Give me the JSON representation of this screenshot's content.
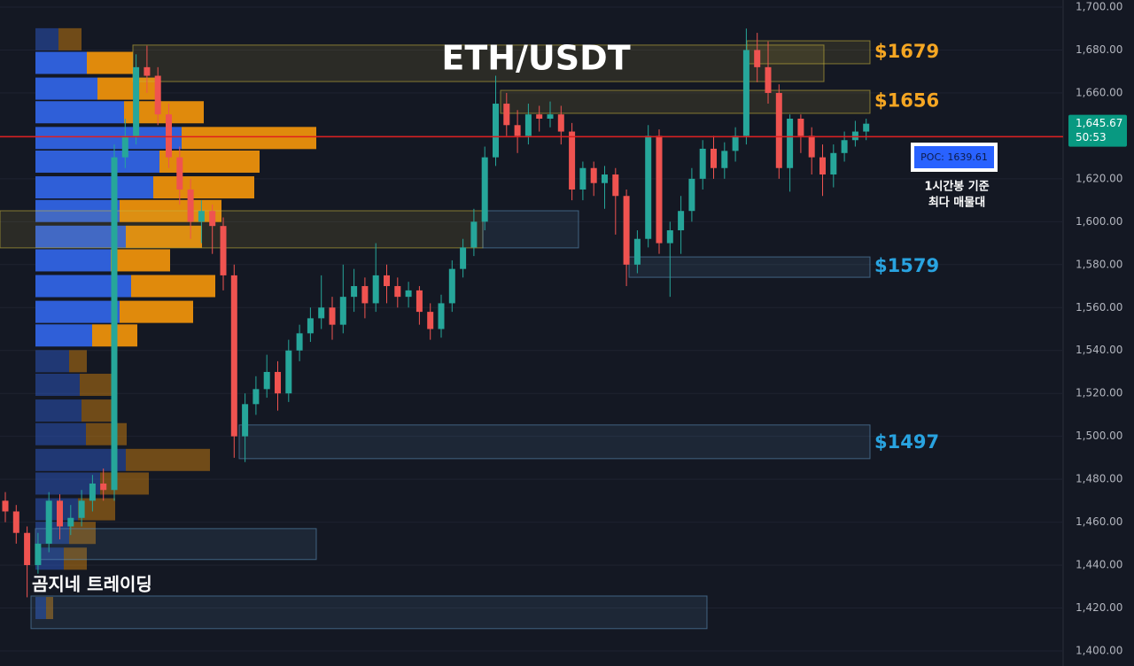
{
  "chart_data": {
    "type": "candlestick",
    "title": "ETH/USDT",
    "up_color": "#26a69a",
    "down_color": "#ef5350",
    "open": [
      1470,
      1465,
      1455,
      1440,
      1450,
      1470,
      1458,
      1462,
      1470,
      1478,
      1475,
      1630,
      1640,
      1672,
      1668,
      1650,
      1630,
      1615,
      1600,
      1605,
      1598,
      1575,
      1500,
      1515,
      1522,
      1530,
      1520,
      1540,
      1548,
      1555,
      1560,
      1552,
      1565,
      1570,
      1562,
      1575,
      1570,
      1565,
      1568,
      1558,
      1550,
      1562,
      1578,
      1588,
      1600,
      1630,
      1655,
      1645,
      1640,
      1650,
      1648,
      1650,
      1642,
      1615,
      1625,
      1618,
      1622,
      1612,
      1580,
      1592,
      1640,
      1590,
      1596,
      1605,
      1620,
      1634,
      1625,
      1633,
      1640,
      1680,
      1672,
      1660,
      1625,
      1648,
      1640,
      1630,
      1622,
      1632,
      1638,
      1642
    ],
    "high": [
      1474,
      1468,
      1458,
      1455,
      1474,
      1473,
      1468,
      1475,
      1482,
      1485,
      1636,
      1648,
      1678,
      1682,
      1672,
      1655,
      1635,
      1620,
      1610,
      1608,
      1602,
      1580,
      1520,
      1528,
      1538,
      1535,
      1545,
      1552,
      1560,
      1575,
      1565,
      1580,
      1578,
      1574,
      1590,
      1580,
      1574,
      1572,
      1570,
      1562,
      1566,
      1582,
      1592,
      1606,
      1635,
      1668,
      1660,
      1652,
      1655,
      1654,
      1656,
      1654,
      1646,
      1628,
      1628,
      1626,
      1625,
      1615,
      1596,
      1645,
      1643,
      1600,
      1612,
      1625,
      1638,
      1640,
      1637,
      1644,
      1690,
      1688,
      1684,
      1664,
      1650,
      1650,
      1644,
      1636,
      1636,
      1642,
      1647,
      1648
    ],
    "low": [
      1460,
      1450,
      1425,
      1436,
      1446,
      1452,
      1454,
      1458,
      1465,
      1470,
      1470,
      1625,
      1636,
      1660,
      1645,
      1625,
      1608,
      1592,
      1590,
      1585,
      1568,
      1490,
      1488,
      1510,
      1518,
      1512,
      1516,
      1535,
      1544,
      1550,
      1545,
      1548,
      1558,
      1555,
      1558,
      1562,
      1560,
      1560,
      1552,
      1545,
      1546,
      1558,
      1574,
      1584,
      1596,
      1626,
      1640,
      1632,
      1636,
      1642,
      1644,
      1636,
      1610,
      1610,
      1612,
      1606,
      1594,
      1570,
      1576,
      1588,
      1585,
      1565,
      1585,
      1600,
      1615,
      1620,
      1620,
      1628,
      1636,
      1665,
      1655,
      1620,
      1614,
      1632,
      1622,
      1612,
      1616,
      1628,
      1635,
      1638
    ],
    "close": [
      1465,
      1455,
      1440,
      1450,
      1470,
      1458,
      1462,
      1470,
      1478,
      1475,
      1630,
      1640,
      1672,
      1668,
      1650,
      1630,
      1615,
      1600,
      1605,
      1598,
      1575,
      1500,
      1515,
      1522,
      1530,
      1520,
      1540,
      1548,
      1555,
      1560,
      1552,
      1565,
      1570,
      1562,
      1575,
      1570,
      1565,
      1568,
      1558,
      1550,
      1562,
      1578,
      1588,
      1600,
      1630,
      1655,
      1645,
      1640,
      1650,
      1648,
      1650,
      1642,
      1615,
      1625,
      1618,
      1622,
      1612,
      1580,
      1592,
      1640,
      1590,
      1596,
      1605,
      1620,
      1634,
      1625,
      1633,
      1640,
      1680,
      1672,
      1660,
      1625,
      1648,
      1640,
      1630,
      1622,
      1632,
      1638,
      1642,
      1645.67
    ],
    "ylim": [
      1400,
      1700
    ],
    "yticks": [
      {
        "value": 1400,
        "label": "1,400.00"
      },
      {
        "value": 1420,
        "label": "1,420.00"
      },
      {
        "value": 1440,
        "label": "1,440.00"
      },
      {
        "value": 1460,
        "label": "1,460.00"
      },
      {
        "value": 1480,
        "label": "1,480.00"
      },
      {
        "value": 1500,
        "label": "1,500.00"
      },
      {
        "value": 1520,
        "label": "1,520.00"
      },
      {
        "value": 1540,
        "label": "1,540.00"
      },
      {
        "value": 1560,
        "label": "1,560.00"
      },
      {
        "value": 1580,
        "label": "1,580.00"
      },
      {
        "value": 1600,
        "label": "1,600.00"
      },
      {
        "value": 1620,
        "label": "1,620.00"
      },
      {
        "value": 1640,
        "label": "1,640.00"
      },
      {
        "value": 1660,
        "label": "1,660.00"
      },
      {
        "value": 1680,
        "label": "1,680.00"
      },
      {
        "value": 1700,
        "label": "1,700.00"
      }
    ],
    "grid": true,
    "poc": {
      "value": 1639.61,
      "label": "POC: 1639.61",
      "color": "#e01e1e"
    },
    "current_price": {
      "value": 1645.67,
      "label": "1,645.67",
      "countdown": "50:53",
      "color": "#089981"
    },
    "levels": [
      {
        "value": 1679,
        "label": "$1679",
        "color": "#f5a623"
      },
      {
        "value": 1656,
        "label": "$1656",
        "color": "#f5a623"
      },
      {
        "value": 1579,
        "label": "$1579",
        "color": "#29a3e0"
      },
      {
        "value": 1497,
        "label": "$1497",
        "color": "#29a3e0"
      }
    ],
    "zones": [
      {
        "low": 1665.3,
        "high": 1682.3,
        "color": "#c8b43c"
      },
      {
        "low": 1673.6,
        "high": 1684.3,
        "color": "#c8b43c"
      },
      {
        "low": 1650.5,
        "high": 1661.2,
        "color": "#c8b43c"
      },
      {
        "low": 1587.8,
        "high": 1605.1,
        "color": "#c8b43c"
      },
      {
        "low": 1587.8,
        "high": 1605.1,
        "color": "#5b8fb9"
      },
      {
        "low": 1574.1,
        "high": 1583.6,
        "color": "#5b8fb9"
      },
      {
        "low": 1489.6,
        "high": 1505.3,
        "color": "#5b8fb9"
      },
      {
        "low": 1442.6,
        "high": 1457,
        "color": "#5b8fb9"
      },
      {
        "low": 1410.4,
        "high": 1425.6,
        "color": "#5b8fb9"
      }
    ],
    "volume_profile": {
      "buy_color": "#2f5fd8",
      "sell_color": "#e08a0c",
      "value_area": [
        1547,
        1674
      ],
      "price": [
        1685,
        1674,
        1662,
        1651,
        1639,
        1628,
        1616,
        1605,
        1593,
        1582,
        1570,
        1558,
        1547,
        1535,
        1524,
        1512,
        1501,
        1489,
        1478,
        1466,
        1455,
        1443,
        1420
      ],
      "buy": [
        26,
        58,
        70,
        100,
        165,
        140,
        133,
        95,
        102,
        85,
        108,
        95,
        64,
        38,
        50,
        52,
        57,
        102,
        73,
        48,
        38,
        32,
        12
      ],
      "sell": [
        26,
        52,
        70,
        90,
        152,
        113,
        114,
        115,
        86,
        67,
        95,
        83,
        51,
        20,
        40,
        38,
        46,
        95,
        55,
        42,
        30,
        26,
        8
      ]
    },
    "annotations": [
      "1시간봉 기준",
      "최다 매물대"
    ],
    "watermark": "곰지네 트레이딩"
  }
}
